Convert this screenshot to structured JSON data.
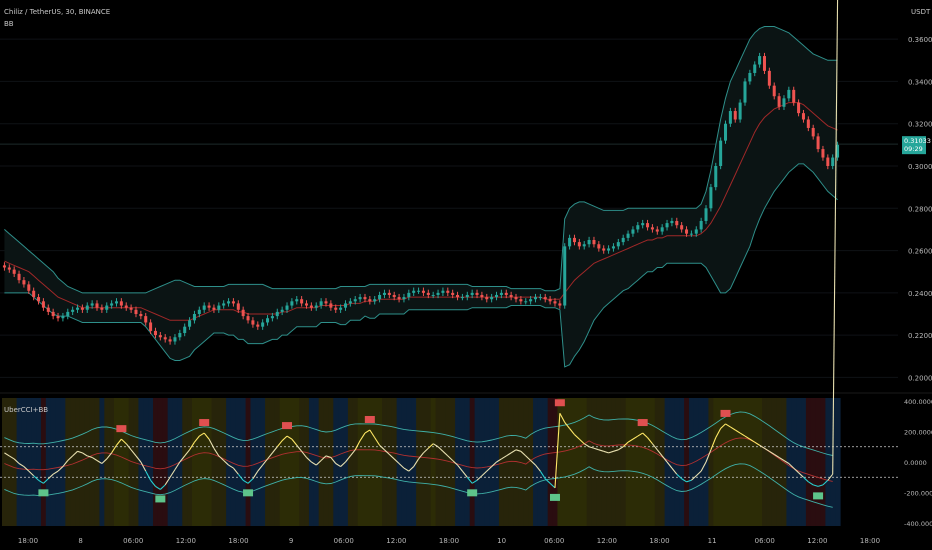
{
  "header": {
    "symbol_line": "Chiliz / TetherUS, 30, BINANCE",
    "bb_label": "BB",
    "currency": "USDT"
  },
  "price_axis": {
    "ticks": [
      "0.36000",
      "0.34000",
      "0.32000",
      "0.30000",
      "0.28000",
      "0.26000",
      "0.24000",
      "0.22000",
      "0.20000"
    ],
    "tick_values": [
      0.36,
      0.34,
      0.32,
      0.3,
      0.28,
      0.26,
      0.24,
      0.22,
      0.2
    ],
    "current_price": "0.31033",
    "current_countdown": "09:29",
    "current_value": 0.31033
  },
  "indicator": {
    "title": "UberCCI+BB",
    "ticks": [
      "400.0000",
      "200.0000",
      "0.0000",
      "-200.0000",
      "-400.0000"
    ],
    "tick_values": [
      400,
      200,
      0,
      -200,
      -400
    ],
    "upper_level": 100,
    "lower_level": -100
  },
  "time_axis": {
    "labels": [
      "18:00",
      "8",
      "06:00",
      "12:00",
      "18:00",
      "9",
      "06:00",
      "12:00",
      "18:00",
      "10",
      "06:00",
      "12:00",
      "18:00",
      "11",
      "06:00",
      "12:00",
      "18:00"
    ]
  },
  "chart_data": {
    "type": "candlestick",
    "instrument": "Chiliz / TetherUS",
    "timeframe": "30",
    "exchange": "BINANCE",
    "ylim": [
      0.195,
      0.37
    ],
    "close_series": [
      0.252,
      0.251,
      0.249,
      0.246,
      0.244,
      0.241,
      0.238,
      0.236,
      0.233,
      0.231,
      0.229,
      0.228,
      0.229,
      0.231,
      0.232,
      0.233,
      0.232,
      0.234,
      0.235,
      0.233,
      0.232,
      0.234,
      0.235,
      0.236,
      0.234,
      0.233,
      0.232,
      0.23,
      0.229,
      0.226,
      0.222,
      0.22,
      0.219,
      0.218,
      0.217,
      0.219,
      0.221,
      0.224,
      0.227,
      0.23,
      0.232,
      0.234,
      0.233,
      0.232,
      0.234,
      0.235,
      0.236,
      0.235,
      0.232,
      0.229,
      0.227,
      0.225,
      0.224,
      0.226,
      0.228,
      0.229,
      0.231,
      0.232,
      0.234,
      0.236,
      0.237,
      0.235,
      0.234,
      0.233,
      0.234,
      0.236,
      0.235,
      0.233,
      0.232,
      0.233,
      0.235,
      0.236,
      0.237,
      0.238,
      0.237,
      0.236,
      0.237,
      0.239,
      0.24,
      0.239,
      0.238,
      0.237,
      0.238,
      0.24,
      0.241,
      0.241,
      0.24,
      0.239,
      0.239,
      0.24,
      0.241,
      0.24,
      0.239,
      0.238,
      0.238,
      0.239,
      0.24,
      0.239,
      0.238,
      0.237,
      0.238,
      0.239,
      0.24,
      0.239,
      0.238,
      0.237,
      0.236,
      0.236,
      0.237,
      0.238,
      0.238,
      0.237,
      0.236,
      0.235,
      0.234,
      0.262,
      0.266,
      0.264,
      0.262,
      0.263,
      0.265,
      0.263,
      0.261,
      0.26,
      0.261,
      0.262,
      0.264,
      0.266,
      0.268,
      0.27,
      0.272,
      0.273,
      0.271,
      0.27,
      0.269,
      0.271,
      0.273,
      0.274,
      0.272,
      0.27,
      0.268,
      0.268,
      0.27,
      0.274,
      0.28,
      0.29,
      0.3,
      0.312,
      0.32,
      0.326,
      0.322,
      0.33,
      0.34,
      0.344,
      0.348,
      0.352,
      0.345,
      0.338,
      0.333,
      0.328,
      0.332,
      0.336,
      0.33,
      0.325,
      0.322,
      0.318,
      0.314,
      0.308,
      0.304,
      0.3,
      0.304,
      0.31
    ],
    "bb_upper": [
      0.27,
      0.268,
      0.266,
      0.264,
      0.262,
      0.26,
      0.258,
      0.256,
      0.254,
      0.252,
      0.25,
      0.247,
      0.245,
      0.243,
      0.242,
      0.241,
      0.24,
      0.24,
      0.24,
      0.24,
      0.24,
      0.24,
      0.24,
      0.24,
      0.24,
      0.24,
      0.24,
      0.24,
      0.24,
      0.24,
      0.241,
      0.242,
      0.243,
      0.244,
      0.245,
      0.246,
      0.246,
      0.245,
      0.244,
      0.243,
      0.243,
      0.243,
      0.243,
      0.243,
      0.243,
      0.243,
      0.244,
      0.244,
      0.244,
      0.244,
      0.244,
      0.244,
      0.244,
      0.244,
      0.243,
      0.242,
      0.242,
      0.242,
      0.242,
      0.242,
      0.242,
      0.242,
      0.242,
      0.242,
      0.242,
      0.242,
      0.242,
      0.242,
      0.242,
      0.243,
      0.243,
      0.243,
      0.243,
      0.243,
      0.243,
      0.244,
      0.244,
      0.244,
      0.244,
      0.244,
      0.244,
      0.244,
      0.244,
      0.244,
      0.244,
      0.244,
      0.244,
      0.244,
      0.244,
      0.244,
      0.244,
      0.244,
      0.244,
      0.244,
      0.244,
      0.244,
      0.243,
      0.243,
      0.243,
      0.243,
      0.243,
      0.243,
      0.243,
      0.243,
      0.242,
      0.242,
      0.242,
      0.242,
      0.242,
      0.242,
      0.242,
      0.241,
      0.241,
      0.241,
      0.242,
      0.275,
      0.28,
      0.282,
      0.283,
      0.283,
      0.282,
      0.281,
      0.28,
      0.279,
      0.279,
      0.279,
      0.279,
      0.279,
      0.28,
      0.28,
      0.28,
      0.28,
      0.28,
      0.28,
      0.28,
      0.28,
      0.28,
      0.28,
      0.28,
      0.28,
      0.28,
      0.28,
      0.28,
      0.282,
      0.288,
      0.298,
      0.31,
      0.322,
      0.332,
      0.34,
      0.345,
      0.35,
      0.355,
      0.36,
      0.363,
      0.365,
      0.366,
      0.366,
      0.366,
      0.365,
      0.364,
      0.363,
      0.361,
      0.359,
      0.357,
      0.355,
      0.353,
      0.352,
      0.351,
      0.35,
      0.35,
      0.35
    ],
    "bb_basis": [
      0.255,
      0.254,
      0.253,
      0.252,
      0.251,
      0.25,
      0.248,
      0.246,
      0.244,
      0.242,
      0.24,
      0.238,
      0.237,
      0.236,
      0.235,
      0.234,
      0.233,
      0.233,
      0.233,
      0.233,
      0.233,
      0.233,
      0.233,
      0.233,
      0.233,
      0.233,
      0.233,
      0.233,
      0.233,
      0.232,
      0.231,
      0.23,
      0.229,
      0.228,
      0.227,
      0.227,
      0.227,
      0.227,
      0.227,
      0.228,
      0.229,
      0.23,
      0.231,
      0.232,
      0.232,
      0.232,
      0.232,
      0.232,
      0.231,
      0.231,
      0.23,
      0.23,
      0.23,
      0.23,
      0.23,
      0.23,
      0.23,
      0.231,
      0.231,
      0.232,
      0.233,
      0.233,
      0.233,
      0.233,
      0.233,
      0.234,
      0.234,
      0.234,
      0.234,
      0.234,
      0.234,
      0.235,
      0.235,
      0.235,
      0.236,
      0.236,
      0.236,
      0.237,
      0.237,
      0.237,
      0.237,
      0.237,
      0.237,
      0.238,
      0.238,
      0.238,
      0.238,
      0.238,
      0.238,
      0.238,
      0.238,
      0.238,
      0.238,
      0.238,
      0.238,
      0.238,
      0.238,
      0.238,
      0.238,
      0.238,
      0.238,
      0.238,
      0.238,
      0.238,
      0.238,
      0.238,
      0.238,
      0.238,
      0.238,
      0.238,
      0.238,
      0.237,
      0.237,
      0.237,
      0.237,
      0.24,
      0.243,
      0.246,
      0.248,
      0.25,
      0.252,
      0.254,
      0.255,
      0.256,
      0.257,
      0.258,
      0.259,
      0.26,
      0.261,
      0.262,
      0.263,
      0.264,
      0.265,
      0.265,
      0.266,
      0.266,
      0.267,
      0.267,
      0.267,
      0.267,
      0.267,
      0.267,
      0.267,
      0.268,
      0.27,
      0.273,
      0.277,
      0.281,
      0.286,
      0.291,
      0.296,
      0.301,
      0.306,
      0.311,
      0.316,
      0.32,
      0.323,
      0.325,
      0.327,
      0.328,
      0.329,
      0.33,
      0.33,
      0.33,
      0.329,
      0.327,
      0.325,
      0.323,
      0.321,
      0.319,
      0.318,
      0.317
    ],
    "bb_lower": [
      0.24,
      0.24,
      0.24,
      0.24,
      0.24,
      0.24,
      0.238,
      0.236,
      0.234,
      0.232,
      0.23,
      0.229,
      0.229,
      0.229,
      0.228,
      0.227,
      0.226,
      0.226,
      0.226,
      0.226,
      0.226,
      0.226,
      0.226,
      0.226,
      0.226,
      0.226,
      0.226,
      0.226,
      0.226,
      0.224,
      0.221,
      0.218,
      0.215,
      0.212,
      0.209,
      0.208,
      0.208,
      0.209,
      0.21,
      0.213,
      0.215,
      0.217,
      0.219,
      0.221,
      0.221,
      0.221,
      0.22,
      0.22,
      0.218,
      0.218,
      0.216,
      0.216,
      0.216,
      0.216,
      0.217,
      0.218,
      0.218,
      0.22,
      0.22,
      0.222,
      0.224,
      0.224,
      0.224,
      0.224,
      0.224,
      0.226,
      0.226,
      0.226,
      0.226,
      0.225,
      0.225,
      0.227,
      0.227,
      0.227,
      0.229,
      0.228,
      0.228,
      0.23,
      0.23,
      0.23,
      0.23,
      0.23,
      0.23,
      0.232,
      0.232,
      0.232,
      0.232,
      0.232,
      0.232,
      0.232,
      0.232,
      0.232,
      0.232,
      0.232,
      0.232,
      0.232,
      0.233,
      0.233,
      0.233,
      0.233,
      0.233,
      0.233,
      0.233,
      0.233,
      0.234,
      0.234,
      0.234,
      0.234,
      0.234,
      0.234,
      0.234,
      0.233,
      0.233,
      0.233,
      0.232,
      0.205,
      0.206,
      0.21,
      0.213,
      0.217,
      0.222,
      0.227,
      0.23,
      0.233,
      0.235,
      0.237,
      0.239,
      0.241,
      0.242,
      0.244,
      0.246,
      0.248,
      0.25,
      0.25,
      0.252,
      0.252,
      0.254,
      0.254,
      0.254,
      0.254,
      0.254,
      0.254,
      0.254,
      0.254,
      0.252,
      0.248,
      0.244,
      0.24,
      0.24,
      0.242,
      0.247,
      0.252,
      0.257,
      0.262,
      0.269,
      0.275,
      0.28,
      0.284,
      0.288,
      0.291,
      0.294,
      0.297,
      0.299,
      0.301,
      0.301,
      0.299,
      0.297,
      0.294,
      0.291,
      0.288,
      0.286,
      0.284
    ]
  },
  "cci_data": {
    "cci": [
      60,
      40,
      20,
      -10,
      -30,
      -60,
      -90,
      -120,
      -140,
      -110,
      -80,
      -60,
      -30,
      10,
      40,
      70,
      60,
      40,
      30,
      10,
      -10,
      20,
      60,
      110,
      150,
      120,
      80,
      40,
      0,
      -60,
      -120,
      -160,
      -180,
      -150,
      -100,
      -50,
      0,
      40,
      80,
      130,
      170,
      190,
      150,
      90,
      40,
      10,
      -20,
      -40,
      -80,
      -120,
      -140,
      -110,
      -60,
      -20,
      20,
      60,
      100,
      140,
      170,
      150,
      110,
      70,
      30,
      0,
      -20,
      10,
      40,
      30,
      -10,
      -30,
      0,
      40,
      80,
      140,
      190,
      210,
      160,
      110,
      80,
      50,
      20,
      -10,
      -40,
      -60,
      -30,
      20,
      60,
      90,
      120,
      100,
      70,
      40,
      10,
      -20,
      -60,
      -100,
      -140,
      -120,
      -90,
      -60,
      -30,
      0,
      20,
      40,
      60,
      80,
      70,
      40,
      10,
      -20,
      -60,
      -110,
      -140,
      -170,
      320,
      260,
      220,
      180,
      150,
      120,
      100,
      90,
      80,
      70,
      60,
      70,
      80,
      100,
      130,
      150,
      170,
      190,
      160,
      120,
      80,
      40,
      0,
      -40,
      -80,
      -110,
      -130,
      -120,
      -90,
      -60,
      0,
      80,
      160,
      220,
      250,
      230,
      210,
      190,
      170,
      150,
      130,
      110,
      90,
      70,
      50,
      30,
      10,
      -10,
      -40,
      -70,
      -100,
      -130,
      -150,
      -160,
      -150,
      -120,
      -80
    ]
  }
}
